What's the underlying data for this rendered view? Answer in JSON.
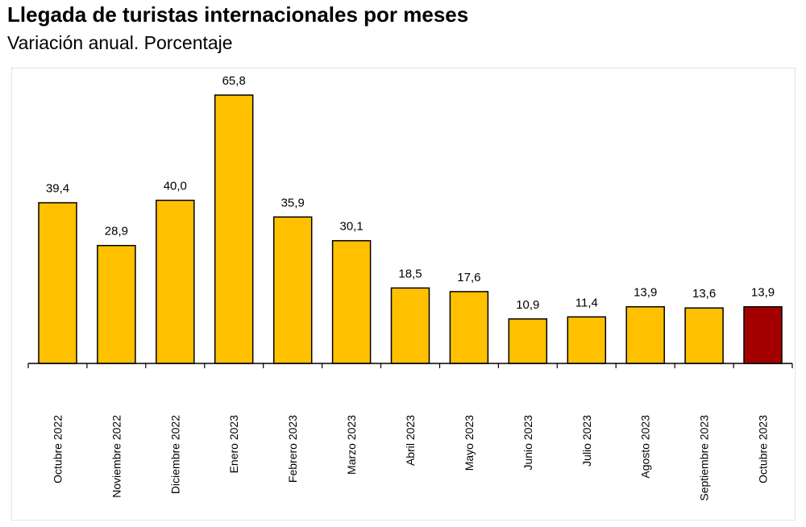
{
  "chart_data": {
    "type": "bar",
    "title": "Llegada de turistas internacionales por meses",
    "subtitle": "Variación anual. Porcentaje",
    "categories": [
      "Octubre 2022",
      "Noviembre 2022",
      "Diciembre 2022",
      "Enero 2023",
      "Febrero 2023",
      "Marzo 2023",
      "Abril 2023",
      "Mayo 2023",
      "Junio 2023",
      "Julio 2023",
      "Agosto 2023",
      "Septiembre 2023",
      "Octubre 2023"
    ],
    "values": [
      39.4,
      28.9,
      40.0,
      65.8,
      35.9,
      30.1,
      18.5,
      17.6,
      10.9,
      11.4,
      13.9,
      13.6,
      13.9
    ],
    "value_labels": [
      "39,4",
      "28,9",
      "40,0",
      "65,8",
      "35,9",
      "30,1",
      "18,5",
      "17,6",
      "10,9",
      "11,4",
      "13,9",
      "13,6",
      "13,9"
    ],
    "ylim": [
      0,
      70
    ],
    "grid": false,
    "colors": {
      "default": "#FFC000",
      "highlight": "#A50000",
      "outline": "#000000"
    },
    "highlight_index": 12
  }
}
